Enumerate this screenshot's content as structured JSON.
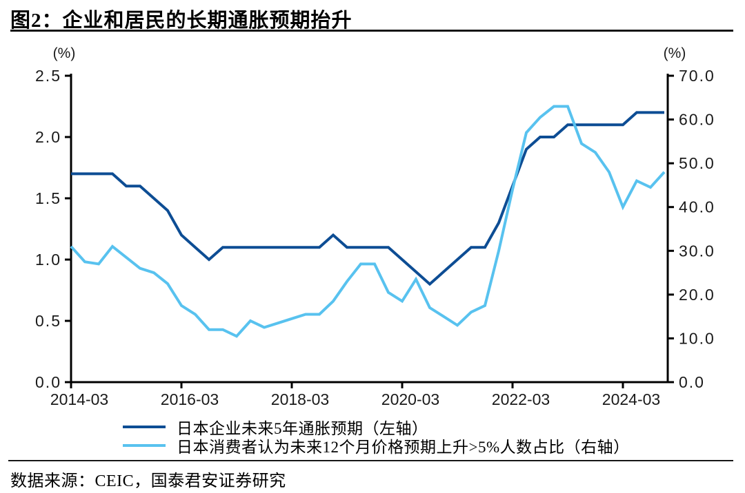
{
  "header": {
    "title": "图2：企业和居民的长期通胀预期抬升"
  },
  "footer": {
    "source": "数据来源：CEIC，国泰君安证券研究"
  },
  "chart_data": {
    "type": "line",
    "title": "企业和居民的长期通胀预期抬升",
    "legend_position": "bottom",
    "grid": false,
    "left_axis": {
      "unit_label": "(%)",
      "range": [
        0.0,
        2.5
      ],
      "ticks": [
        "2.5",
        "2.0",
        "1.5",
        "1.0",
        "0.5",
        "0.0"
      ]
    },
    "right_axis": {
      "unit_label": "(%)",
      "range": [
        0.0,
        70.0
      ],
      "ticks": [
        "70.0",
        "60.0",
        "50.0",
        "40.0",
        "30.0",
        "20.0",
        "10.0",
        "0.0"
      ]
    },
    "x_axis": {
      "start": "2014-03",
      "end": "2024-12",
      "tick_labels": [
        "2014-03",
        "2016-03",
        "2018-03",
        "2020-03",
        "2022-03",
        "2024-03"
      ]
    },
    "x": [
      "2014-03",
      "2014-06",
      "2014-09",
      "2014-12",
      "2015-03",
      "2015-06",
      "2015-09",
      "2015-12",
      "2016-03",
      "2016-06",
      "2016-09",
      "2016-12",
      "2017-03",
      "2017-06",
      "2017-09",
      "2017-12",
      "2018-03",
      "2018-06",
      "2018-09",
      "2018-12",
      "2019-03",
      "2019-06",
      "2019-09",
      "2019-12",
      "2020-03",
      "2020-06",
      "2020-09",
      "2020-12",
      "2021-03",
      "2021-06",
      "2021-09",
      "2021-12",
      "2022-03",
      "2022-06",
      "2022-09",
      "2022-12",
      "2023-03",
      "2023-06",
      "2023-09",
      "2023-12",
      "2024-03",
      "2024-06",
      "2024-09",
      "2024-12"
    ],
    "series": [
      {
        "name": "日本企业未来5年通胀预期（左轴）",
        "axis": "left",
        "color": "#0d4d94",
        "values": [
          1.7,
          1.7,
          1.7,
          1.7,
          1.6,
          1.6,
          1.5,
          1.4,
          1.2,
          1.1,
          1.0,
          1.1,
          1.1,
          1.1,
          1.1,
          1.1,
          1.1,
          1.1,
          1.1,
          1.2,
          1.1,
          1.1,
          1.1,
          1.1,
          1.0,
          0.9,
          0.8,
          0.9,
          1.0,
          1.1,
          1.1,
          1.3,
          1.6,
          1.9,
          2.0,
          2.0,
          2.1,
          2.1,
          2.1,
          2.1,
          2.1,
          2.2,
          2.2,
          2.2
        ]
      },
      {
        "name": "日本消费者认为未来12个月价格预期上升>5%人数占比（右轴）",
        "axis": "right",
        "color": "#58c2ef",
        "values": [
          31,
          27.5,
          27,
          31,
          28.5,
          26,
          25,
          22.5,
          17.5,
          15.5,
          12,
          12,
          10.5,
          14,
          12.5,
          13.5,
          14.5,
          15.5,
          15.5,
          18.5,
          23,
          27,
          27,
          20.5,
          18.5,
          23.5,
          17,
          15,
          13,
          16,
          17.5,
          30,
          44,
          57,
          60.5,
          63,
          63,
          54.5,
          52.5,
          48,
          40,
          46,
          44.5,
          48
        ]
      }
    ]
  }
}
